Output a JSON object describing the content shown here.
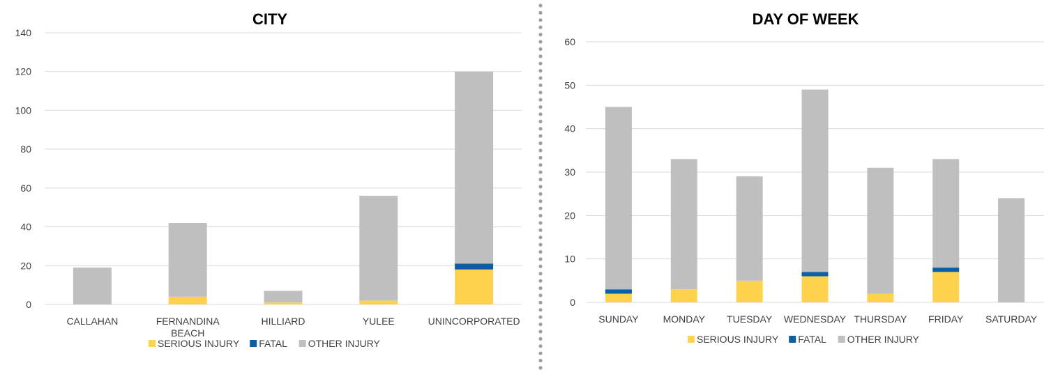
{
  "colors": {
    "serious": "#ffd24d",
    "fatal": "#0b5fa5",
    "other": "#bfbfbf",
    "divider": "#9e9e9e"
  },
  "chart_data": [
    {
      "type": "bar",
      "stacked": true,
      "title": "CITY",
      "categories": [
        "CALLAHAN",
        "FERNANDINA BEACH",
        "HILLIARD",
        "YULEE",
        "UNINCORPORATED"
      ],
      "series": [
        {
          "name": "SERIOUS INJURY",
          "color_key": "serious",
          "values": [
            0,
            4,
            1,
            2,
            18
          ]
        },
        {
          "name": "FATAL",
          "color_key": "fatal",
          "values": [
            0,
            0,
            0,
            0,
            3
          ]
        },
        {
          "name": "OTHER INJURY",
          "color_key": "other",
          "values": [
            19,
            38,
            6,
            54,
            99
          ]
        }
      ],
      "ylim": [
        0,
        140
      ],
      "yticks": [
        "0",
        "20",
        "40",
        "60",
        "80",
        "100",
        "120",
        "140"
      ],
      "grid": true,
      "legend": "bottom"
    },
    {
      "type": "bar",
      "stacked": true,
      "title": "DAY OF WEEK",
      "categories": [
        "SUNDAY",
        "MONDAY",
        "TUESDAY",
        "WEDNESDAY",
        "THURSDAY",
        "FRIDAY",
        "SATURDAY"
      ],
      "series": [
        {
          "name": "SERIOUS INJURY",
          "color_key": "serious",
          "values": [
            2,
            3,
            5,
            6,
            2,
            7,
            0
          ]
        },
        {
          "name": "FATAL",
          "color_key": "fatal",
          "values": [
            1,
            0,
            0,
            1,
            0,
            1,
            0
          ]
        },
        {
          "name": "OTHER INJURY",
          "color_key": "other",
          "values": [
            42,
            30,
            24,
            42,
            29,
            25,
            24
          ]
        }
      ],
      "ylim": [
        0,
        60
      ],
      "yticks": [
        "0",
        "10",
        "20",
        "30",
        "40",
        "50",
        "60"
      ],
      "grid": true,
      "legend": "bottom"
    }
  ]
}
